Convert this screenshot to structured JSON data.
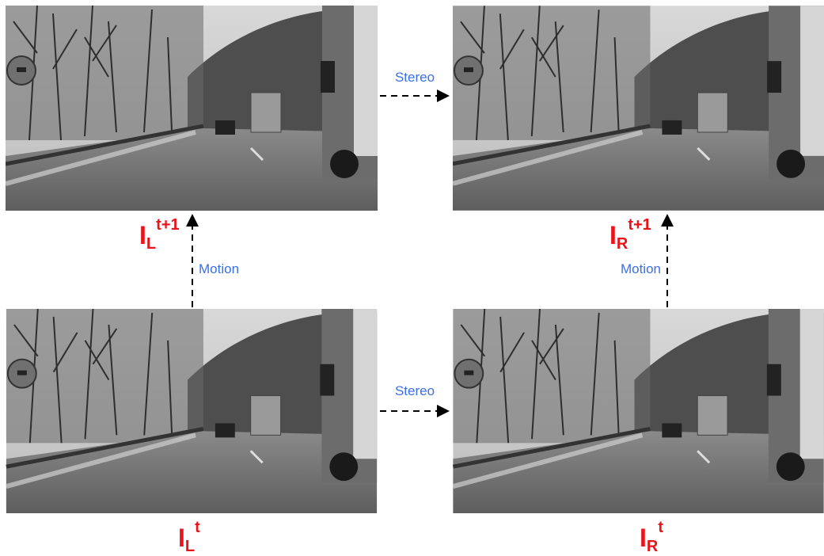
{
  "nodes": [
    {
      "base": "I",
      "sub": "L",
      "sup": "t+1"
    },
    {
      "base": "I",
      "sub": "R",
      "sup": "t+1"
    },
    {
      "base": "I",
      "sub": "L",
      "sup": "t"
    },
    {
      "base": "I",
      "sub": "R",
      "sup": "t"
    }
  ],
  "edges": [
    {
      "label": "Stereo"
    },
    {
      "label": "Stereo"
    },
    {
      "label": "Motion"
    },
    {
      "label": "Motion"
    }
  ]
}
